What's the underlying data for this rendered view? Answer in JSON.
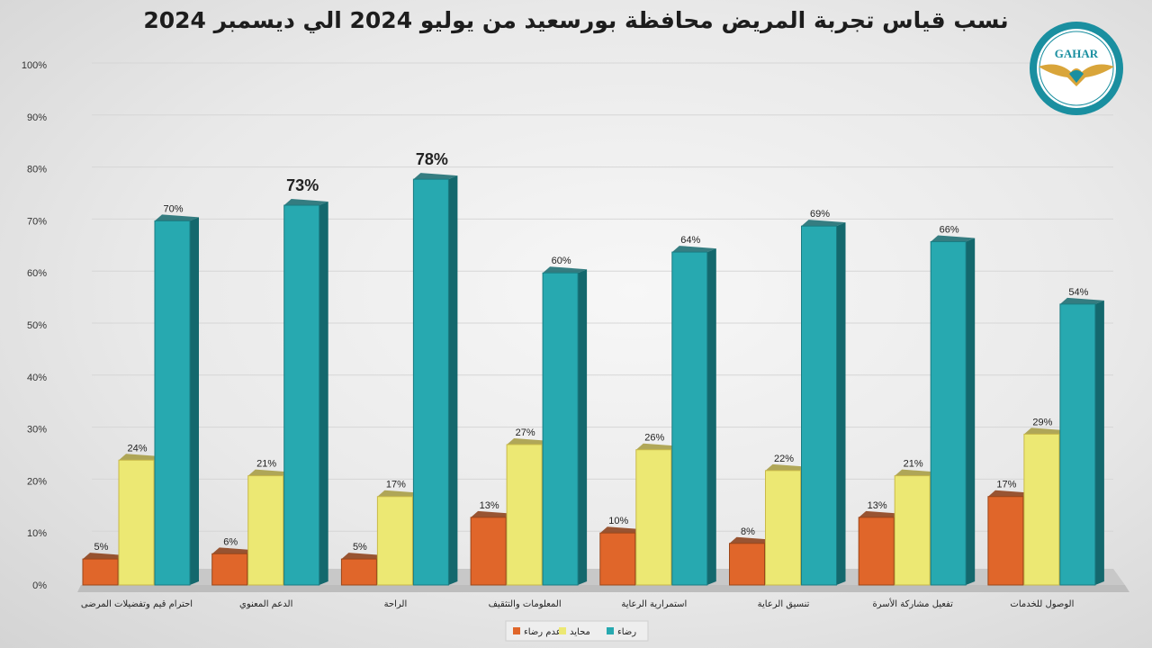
{
  "title": "نسب قياس تجربة المريض  محافظة بورسعيد من يوليو 2024 الي ديسمبر 2024",
  "logo": {
    "text": "GAHAR",
    "icon": "gahar-eagle-seal-icon"
  },
  "colors": {
    "dissatisfied": "#e0662a",
    "neutral": "#ece873",
    "satisfied": "#27a9b0",
    "satisfied_side": "#14686d",
    "dissatisfied_side": "#8a3a12",
    "neutral_side": "#a59a3d"
  },
  "chart_data": {
    "type": "bar",
    "title": "نسب قياس تجربة المريض  محافظة بورسعيد من يوليو 2024 الي ديسمبر 2024",
    "ylim": [
      0,
      100
    ],
    "yticks": [
      "0%",
      "10%",
      "20%",
      "30%",
      "40%",
      "50%",
      "60%",
      "70%",
      "80%",
      "90%",
      "100%"
    ],
    "grid": true,
    "legend_position": "bottom",
    "categories": [
      "احترام قيم وتفضيلات المرضى",
      "الدعم المعنوي",
      "الراحة",
      "المعلومات والتثقيف",
      "استمرارية الرعاية",
      "تنسيق الرعاية",
      "تفعيل مشاركة الأسرة",
      "الوصول للخدمات"
    ],
    "series": [
      {
        "name": "عدم رضاء",
        "values": [
          5,
          6,
          5,
          13,
          10,
          8,
          13,
          17
        ]
      },
      {
        "name": "محايد",
        "values": [
          24,
          21,
          17,
          27,
          26,
          22,
          21,
          29
        ]
      },
      {
        "name": "رضاء",
        "values": [
          70,
          73,
          78,
          60,
          64,
          69,
          66,
          54
        ]
      }
    ],
    "data_labels": [
      [
        "5%",
        "6%",
        "5%",
        "13%",
        "10%",
        "8%",
        "13%",
        "17%"
      ],
      [
        "24%",
        "21%",
        "17%",
        "27%",
        "26%",
        "22%",
        "21%",
        "29%"
      ],
      [
        "70%",
        "73%",
        "78%",
        "60%",
        "64%",
        "69%",
        "66%",
        "54%"
      ]
    ]
  }
}
